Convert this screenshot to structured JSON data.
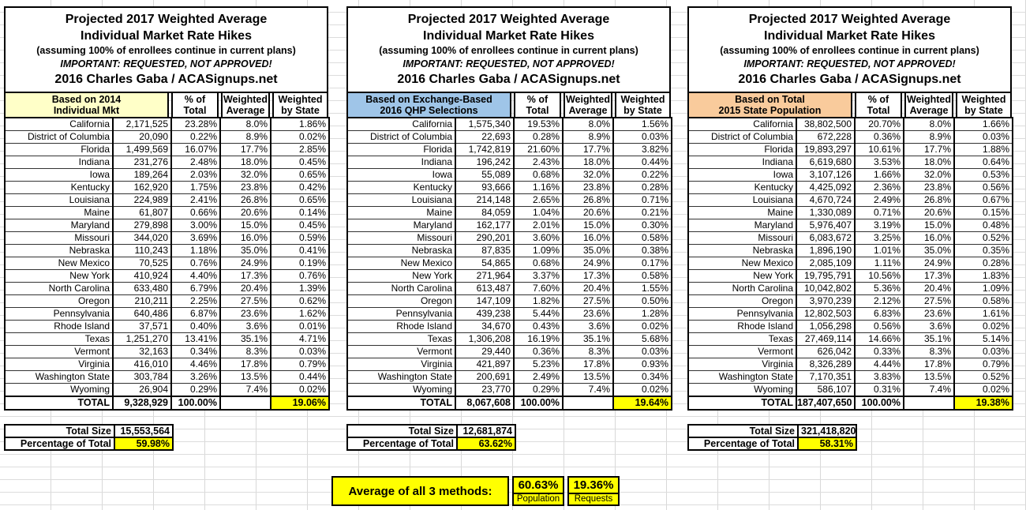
{
  "title": {
    "line1": "Projected 2017 Weighted Average",
    "line2": "Individual Market Rate Hikes",
    "line3": "(assuming 100% of enrollees continue in current plans)",
    "line4": "IMPORTANT: REQUESTED, NOT APPROVED!",
    "line5": "2016 Charles Gaba / ACASignups.net"
  },
  "columns": {
    "pct_line1": "% of",
    "pct_line2": "Total",
    "wavg_line1": "Weighted",
    "wavg_line2": "Average",
    "wstate_line1": "Weighted",
    "wstate_line2": "by State"
  },
  "footer_labels": {
    "total_size": "Total Size",
    "pct_of_total": "Percentage of Total"
  },
  "colors": {
    "highlight": "#FFFF00",
    "table1_header": "#FFFFC8",
    "table2_header": "#9FC5E8",
    "table3_header": "#F9CB9C"
  },
  "tables": [
    {
      "group_header": [
        "Based on 2014",
        "Individual Mkt"
      ],
      "header_color": "#FFFFC8",
      "rows": [
        [
          "California",
          "2,171,525",
          "23.28%",
          "8.0%",
          "1.86%"
        ],
        [
          "District of Columbia",
          "20,090",
          "0.22%",
          "8.9%",
          "0.02%"
        ],
        [
          "Florida",
          "1,499,569",
          "16.07%",
          "17.7%",
          "2.85%"
        ],
        [
          "Indiana",
          "231,276",
          "2.48%",
          "18.0%",
          "0.45%"
        ],
        [
          "Iowa",
          "189,264",
          "2.03%",
          "32.0%",
          "0.65%"
        ],
        [
          "Kentucky",
          "162,920",
          "1.75%",
          "23.8%",
          "0.42%"
        ],
        [
          "Louisiana",
          "224,989",
          "2.41%",
          "26.8%",
          "0.65%"
        ],
        [
          "Maine",
          "61,807",
          "0.66%",
          "20.6%",
          "0.14%"
        ],
        [
          "Maryland",
          "279,898",
          "3.00%",
          "15.0%",
          "0.45%"
        ],
        [
          "Missouri",
          "344,020",
          "3.69%",
          "16.0%",
          "0.59%"
        ],
        [
          "Nebraska",
          "110,243",
          "1.18%",
          "35.0%",
          "0.41%"
        ],
        [
          "New Mexico",
          "70,525",
          "0.76%",
          "24.9%",
          "0.19%"
        ],
        [
          "New York",
          "410,924",
          "4.40%",
          "17.3%",
          "0.76%"
        ],
        [
          "North Carolina",
          "633,480",
          "6.79%",
          "20.4%",
          "1.39%"
        ],
        [
          "Oregon",
          "210,211",
          "2.25%",
          "27.5%",
          "0.62%"
        ],
        [
          "Pennsylvania",
          "640,486",
          "6.87%",
          "23.6%",
          "1.62%"
        ],
        [
          "Rhode Island",
          "37,571",
          "0.40%",
          "3.6%",
          "0.01%"
        ],
        [
          "Texas",
          "1,251,270",
          "13.41%",
          "35.1%",
          "4.71%"
        ],
        [
          "Vermont",
          "32,163",
          "0.34%",
          "8.3%",
          "0.03%"
        ],
        [
          "Virginia",
          "416,010",
          "4.46%",
          "17.8%",
          "0.79%"
        ],
        [
          "Washington State",
          "303,784",
          "3.26%",
          "13.5%",
          "0.44%"
        ],
        [
          "Wyoming",
          "26,904",
          "0.29%",
          "7.4%",
          "0.02%"
        ]
      ],
      "total_row": [
        "TOTAL",
        "9,328,929",
        "100.00%",
        "",
        "19.06%"
      ],
      "total_size": "15,553,564",
      "percentage_of_total": "59.98%"
    },
    {
      "group_header": [
        "Based on Exchange-Based",
        "2016 QHP Selections"
      ],
      "header_color": "#9FC5E8",
      "rows": [
        [
          "California",
          "1,575,340",
          "19.53%",
          "8.0%",
          "1.56%"
        ],
        [
          "District of Columbia",
          "22,693",
          "0.28%",
          "8.9%",
          "0.03%"
        ],
        [
          "Florida",
          "1,742,819",
          "21.60%",
          "17.7%",
          "3.82%"
        ],
        [
          "Indiana",
          "196,242",
          "2.43%",
          "18.0%",
          "0.44%"
        ],
        [
          "Iowa",
          "55,089",
          "0.68%",
          "32.0%",
          "0.22%"
        ],
        [
          "Kentucky",
          "93,666",
          "1.16%",
          "23.8%",
          "0.28%"
        ],
        [
          "Louisiana",
          "214,148",
          "2.65%",
          "26.8%",
          "0.71%"
        ],
        [
          "Maine",
          "84,059",
          "1.04%",
          "20.6%",
          "0.21%"
        ],
        [
          "Maryland",
          "162,177",
          "2.01%",
          "15.0%",
          "0.30%"
        ],
        [
          "Missouri",
          "290,201",
          "3.60%",
          "16.0%",
          "0.58%"
        ],
        [
          "Nebraska",
          "87,835",
          "1.09%",
          "35.0%",
          "0.38%"
        ],
        [
          "New Mexico",
          "54,865",
          "0.68%",
          "24.9%",
          "0.17%"
        ],
        [
          "New York",
          "271,964",
          "3.37%",
          "17.3%",
          "0.58%"
        ],
        [
          "North Carolina",
          "613,487",
          "7.60%",
          "20.4%",
          "1.55%"
        ],
        [
          "Oregon",
          "147,109",
          "1.82%",
          "27.5%",
          "0.50%"
        ],
        [
          "Pennsylvania",
          "439,238",
          "5.44%",
          "23.6%",
          "1.28%"
        ],
        [
          "Rhode Island",
          "34,670",
          "0.43%",
          "3.6%",
          "0.02%"
        ],
        [
          "Texas",
          "1,306,208",
          "16.19%",
          "35.1%",
          "5.68%"
        ],
        [
          "Vermont",
          "29,440",
          "0.36%",
          "8.3%",
          "0.03%"
        ],
        [
          "Virginia",
          "421,897",
          "5.23%",
          "17.8%",
          "0.93%"
        ],
        [
          "Washington State",
          "200,691",
          "2.49%",
          "13.5%",
          "0.34%"
        ],
        [
          "Wyoming",
          "23,770",
          "0.29%",
          "7.4%",
          "0.02%"
        ]
      ],
      "total_row": [
        "TOTAL",
        "8,067,608",
        "100.00%",
        "",
        "19.64%"
      ],
      "total_size": "12,681,874",
      "percentage_of_total": "63.62%"
    },
    {
      "group_header": [
        "Based on Total",
        "2015 State Population"
      ],
      "header_color": "#F9CB9C",
      "rows": [
        [
          "California",
          "38,802,500",
          "20.70%",
          "8.0%",
          "1.66%"
        ],
        [
          "District of Columbia",
          "672,228",
          "0.36%",
          "8.9%",
          "0.03%"
        ],
        [
          "Florida",
          "19,893,297",
          "10.61%",
          "17.7%",
          "1.88%"
        ],
        [
          "Indiana",
          "6,619,680",
          "3.53%",
          "18.0%",
          "0.64%"
        ],
        [
          "Iowa",
          "3,107,126",
          "1.66%",
          "32.0%",
          "0.53%"
        ],
        [
          "Kentucky",
          "4,425,092",
          "2.36%",
          "23.8%",
          "0.56%"
        ],
        [
          "Louisiana",
          "4,670,724",
          "2.49%",
          "26.8%",
          "0.67%"
        ],
        [
          "Maine",
          "1,330,089",
          "0.71%",
          "20.6%",
          "0.15%"
        ],
        [
          "Maryland",
          "5,976,407",
          "3.19%",
          "15.0%",
          "0.48%"
        ],
        [
          "Missouri",
          "6,083,672",
          "3.25%",
          "16.0%",
          "0.52%"
        ],
        [
          "Nebraska",
          "1,896,190",
          "1.01%",
          "35.0%",
          "0.35%"
        ],
        [
          "New Mexico",
          "2,085,109",
          "1.11%",
          "24.9%",
          "0.28%"
        ],
        [
          "New York",
          "19,795,791",
          "10.56%",
          "17.3%",
          "1.83%"
        ],
        [
          "North Carolina",
          "10,042,802",
          "5.36%",
          "20.4%",
          "1.09%"
        ],
        [
          "Oregon",
          "3,970,239",
          "2.12%",
          "27.5%",
          "0.58%"
        ],
        [
          "Pennsylvania",
          "12,802,503",
          "6.83%",
          "23.6%",
          "1.61%"
        ],
        [
          "Rhode Island",
          "1,056,298",
          "0.56%",
          "3.6%",
          "0.02%"
        ],
        [
          "Texas",
          "27,469,114",
          "14.66%",
          "35.1%",
          "5.14%"
        ],
        [
          "Vermont",
          "626,042",
          "0.33%",
          "8.3%",
          "0.03%"
        ],
        [
          "Virginia",
          "8,326,289",
          "4.44%",
          "17.8%",
          "0.79%"
        ],
        [
          "Washington State",
          "7,170,351",
          "3.83%",
          "13.5%",
          "0.52%"
        ],
        [
          "Wyoming",
          "586,107",
          "0.31%",
          "7.4%",
          "0.02%"
        ]
      ],
      "total_row": [
        "TOTAL",
        "187,407,650",
        "100.00%",
        "",
        "19.38%"
      ],
      "total_size": "321,418,820",
      "percentage_of_total": "58.31%"
    }
  ],
  "average": {
    "label": "Average of all 3 methods:",
    "values": [
      {
        "value": "60.63%",
        "label": "Population"
      },
      {
        "value": "19.36%",
        "label": "Requests"
      }
    ]
  }
}
